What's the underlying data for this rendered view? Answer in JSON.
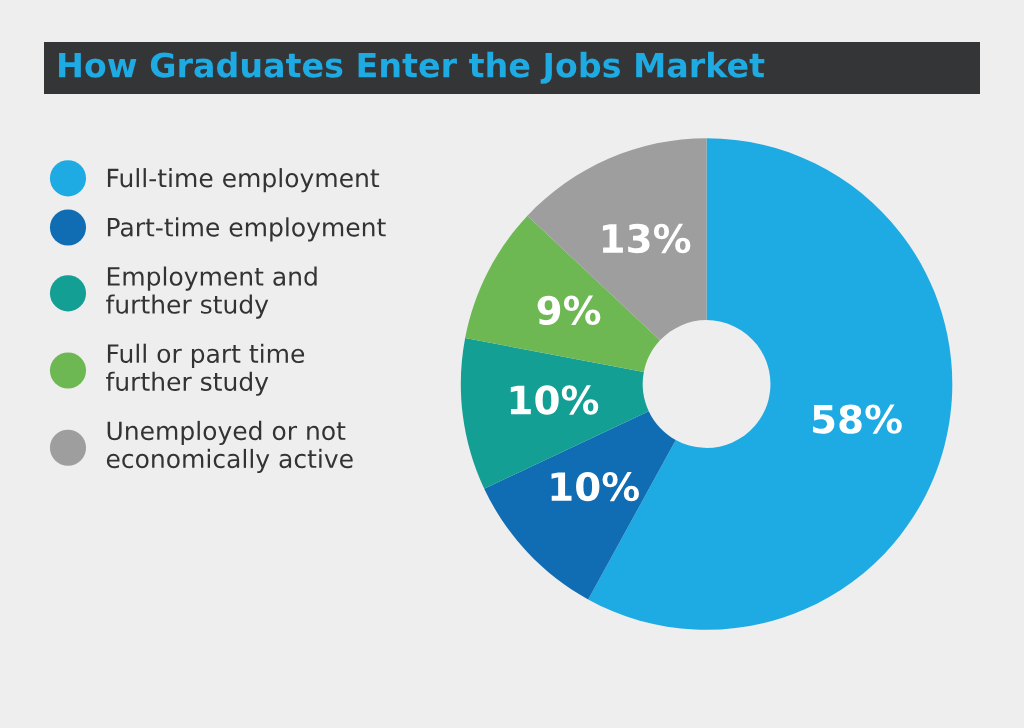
{
  "chart_data": {
    "type": "donut",
    "title": "How Graduates Enter the Jobs Market",
    "categories": [
      "Full-time employment",
      "Part-time employment",
      "Employment and\nfurther study",
      "Full or part time\nfurther study",
      "Unemployed or not\neconomically active"
    ],
    "values": [
      58,
      10,
      10,
      9,
      13
    ],
    "colors": [
      "#1eaae2",
      "#106db4",
      "#139f94",
      "#6db853",
      "#9e9e9e"
    ],
    "value_labels": [
      "58%",
      "10%",
      "10%",
      "9%",
      "13%"
    ],
    "legend": "left"
  }
}
